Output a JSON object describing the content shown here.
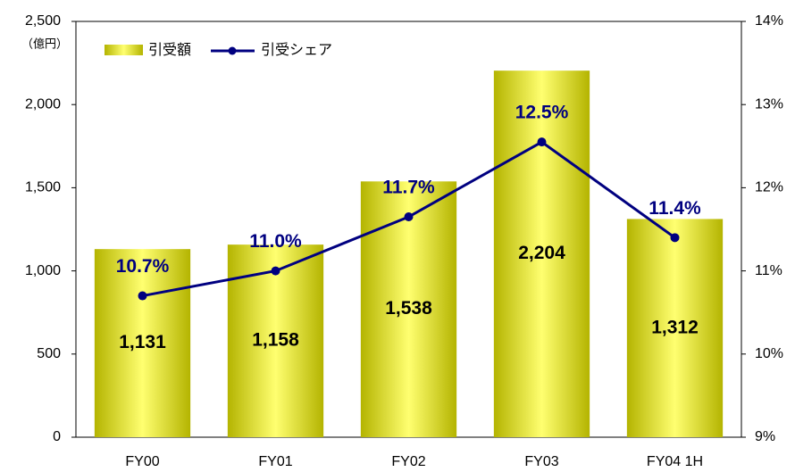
{
  "chart_data": {
    "type": "bar_line",
    "y_label": "（億円）",
    "categories": [
      "FY00",
      "FY01",
      "FY02",
      "FY03",
      "FY04 1H"
    ],
    "series": [
      {
        "name": "引受額",
        "type": "bar",
        "color": "#b4b400",
        "values": [
          1131,
          1158,
          1538,
          2204,
          1312
        ],
        "value_labels": [
          "1,131",
          "1,158",
          "1,538",
          "2,204",
          "1,312"
        ]
      },
      {
        "name": "引受シェア",
        "type": "line",
        "axis": "y2",
        "color": "#000080",
        "values": [
          10.7,
          11.0,
          11.65,
          12.55,
          11.4
        ],
        "value_labels": [
          "10.7%",
          "11.0%",
          "11.7%",
          "12.5%",
          "11.4%"
        ]
      }
    ],
    "ylim": [
      0,
      2500
    ],
    "yticks": [
      0,
      500,
      {
        "value": 1000,
        "label": "1,000"
      },
      {
        "value": 1500,
        "label": "1,500"
      },
      {
        "value": 2000,
        "label": "2,000"
      },
      {
        "value": 2500,
        "label": "2,500"
      }
    ],
    "y2lim": [
      9,
      14
    ],
    "y2ticks": [
      {
        "value": 9,
        "label": "9%"
      },
      {
        "value": 10,
        "label": "10%"
      },
      {
        "value": 11,
        "label": "11%"
      },
      {
        "value": 12,
        "label": "12%"
      },
      {
        "value": 13,
        "label": "13%"
      },
      {
        "value": 14,
        "label": "14%"
      }
    ],
    "legend": "top-left"
  }
}
